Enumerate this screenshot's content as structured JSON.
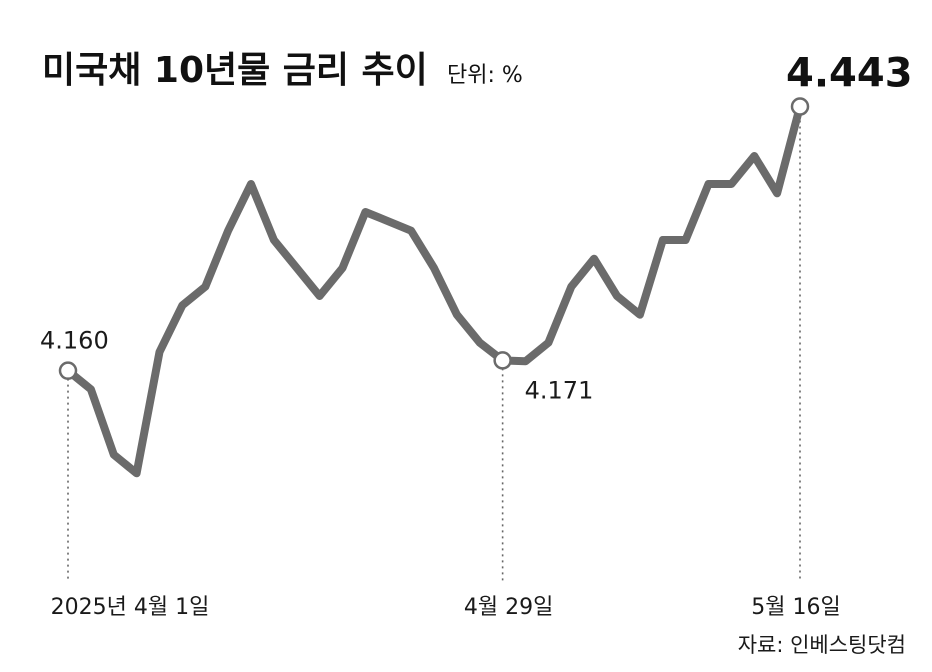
{
  "chart_data": {
    "type": "line",
    "title": "미국채 10년물 금리 추이",
    "unit": "단위: %",
    "source": "자료: 인베스팅닷컴",
    "x_tick_labels": [
      "2025년 4월 1일",
      "4월 29일",
      "5월 16일"
    ],
    "series_color": "#6b6b6b",
    "values": [
      4.16,
      4.14,
      4.07,
      4.05,
      4.18,
      4.23,
      4.25,
      4.31,
      4.36,
      4.3,
      4.27,
      4.24,
      4.27,
      4.33,
      4.32,
      4.31,
      4.27,
      4.22,
      4.19,
      4.171,
      4.17,
      4.19,
      4.25,
      4.28,
      4.24,
      4.22,
      4.3,
      4.3,
      4.36,
      4.36,
      4.39,
      4.35,
      4.443
    ],
    "annotations": [
      {
        "index": 0,
        "label": "4.160"
      },
      {
        "index": 19,
        "label": "4.171"
      },
      {
        "index": 32,
        "label": "4.443"
      }
    ],
    "ylim": [
      4.0,
      4.45
    ]
  }
}
